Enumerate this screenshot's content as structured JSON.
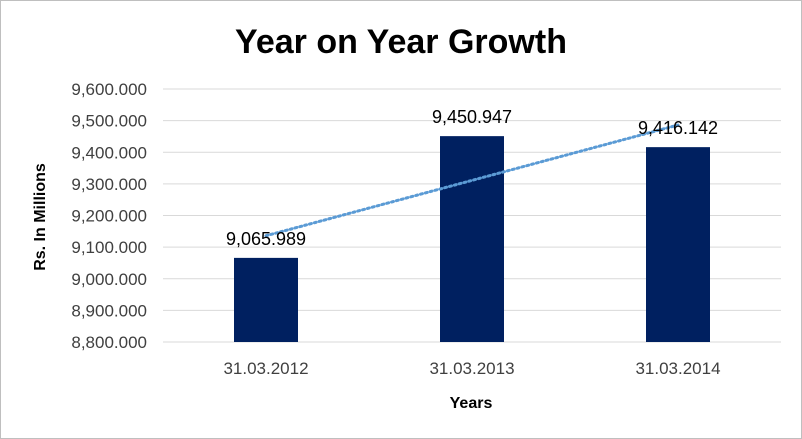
{
  "chart_data": {
    "type": "bar",
    "title": "Year on Year Growth",
    "xlabel": "Years",
    "ylabel": "Rs. In Millions",
    "categories": [
      "31.03.2012",
      "31.03.2013",
      "31.03.2014"
    ],
    "values": [
      9065.989,
      9450.947,
      9416.142
    ],
    "data_labels": [
      "9,065.989",
      "9,450.947",
      "9,416.142"
    ],
    "ylim": [
      8800,
      9600
    ],
    "yticks": [
      8800,
      8900,
      9000,
      9100,
      9200,
      9300,
      9400,
      9500,
      9600
    ],
    "ytick_labels": [
      "8,800.000",
      "8,900.000",
      "9,000.000",
      "9,100.000",
      "9,200.000",
      "9,300.000",
      "9,400.000",
      "9,500.000",
      "9,600.000"
    ],
    "grid": true,
    "trendline": "linear",
    "bar_color": "#002060",
    "trendline_color": "#5b9bd5",
    "grid_color": "#d9d9d9"
  }
}
